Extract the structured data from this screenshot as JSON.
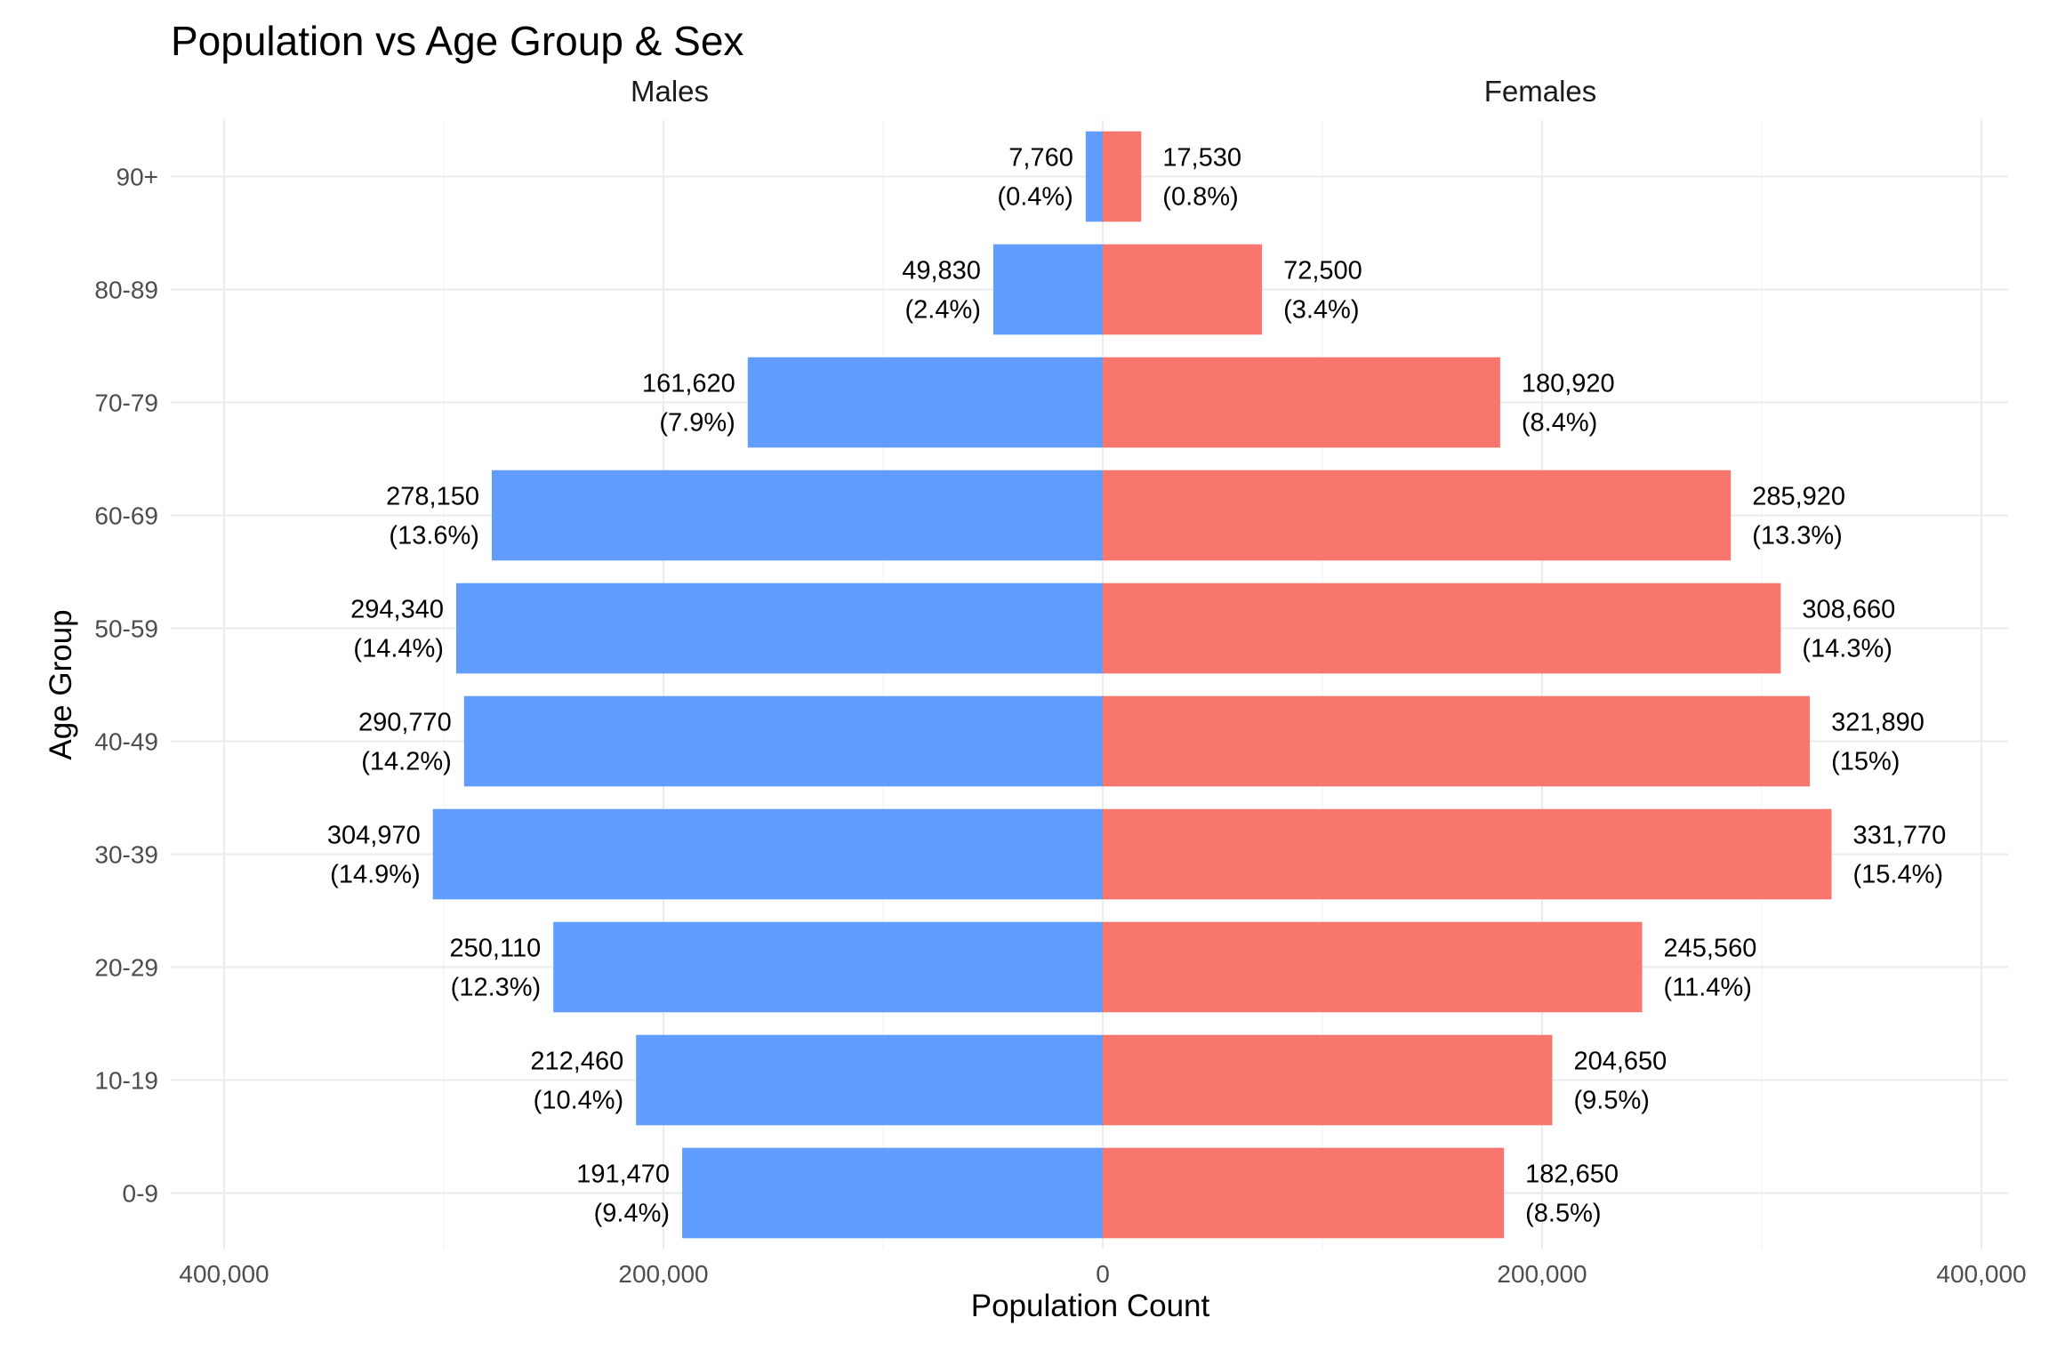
{
  "chart_data": {
    "type": "bar",
    "orientation": "horizontal",
    "title": "Population vs Age Group & Sex",
    "xlabel": "Population Count",
    "ylabel": "Age Group",
    "xlim": [
      -400000,
      400000
    ],
    "x_ticks": [
      {
        "value": -400000,
        "label": "400,000"
      },
      {
        "value": -200000,
        "label": "200,000"
      },
      {
        "value": 0,
        "label": "0"
      },
      {
        "value": 200000,
        "label": "200,000"
      },
      {
        "value": 400000,
        "label": "400,000"
      }
    ],
    "x_minor_ticks": [
      -300000,
      -100000,
      100000,
      300000
    ],
    "grid": true,
    "legend": "none",
    "facets": [
      "Males",
      "Females"
    ],
    "categories": [
      "0-9",
      "10-19",
      "20-29",
      "30-39",
      "40-49",
      "50-59",
      "60-69",
      "70-79",
      "80-89",
      "90+"
    ],
    "series": [
      {
        "name": "Males",
        "color": "#619CFF",
        "values": [
          191470,
          212460,
          250110,
          304970,
          290770,
          294340,
          278150,
          161620,
          49830,
          7760
        ],
        "labels": [
          "191,470",
          "212,460",
          "250,110",
          "304,970",
          "290,770",
          "294,340",
          "278,150",
          "161,620",
          "49,830",
          "7,760"
        ],
        "percents": [
          "(9.4%)",
          "(10.4%)",
          "(12.3%)",
          "(14.9%)",
          "(14.2%)",
          "(14.4%)",
          "(13.6%)",
          "(7.9%)",
          "(2.4%)",
          "(0.4%)"
        ]
      },
      {
        "name": "Females",
        "color": "#F8766D",
        "values": [
          182650,
          204650,
          245560,
          331770,
          321890,
          308660,
          285920,
          180920,
          72500,
          17530
        ],
        "labels": [
          "182,650",
          "204,650",
          "245,560",
          "331,770",
          "321,890",
          "308,660",
          "285,920",
          "180,920",
          "72,500",
          "17,530"
        ],
        "percents": [
          "(8.5%)",
          "(9.5%)",
          "(11.4%)",
          "(15.4%)",
          "(15%)",
          "(14.3%)",
          "(13.3%)",
          "(8.4%)",
          "(3.4%)",
          "(0.8%)"
        ]
      }
    ]
  }
}
